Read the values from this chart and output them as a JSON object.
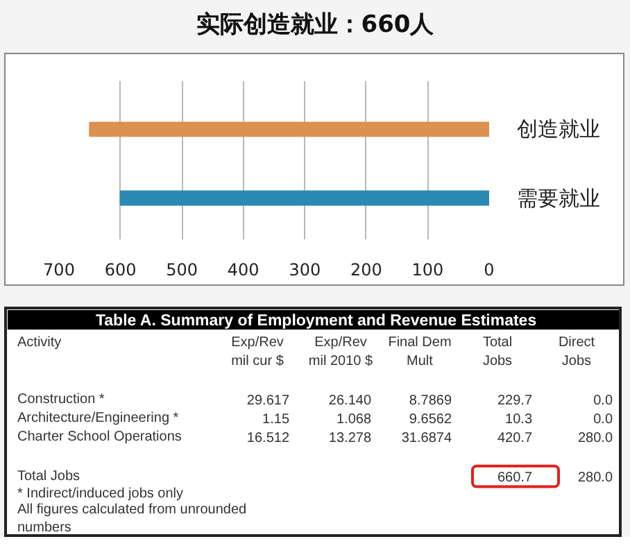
{
  "chart_data": [
    {
      "type": "bar",
      "title": "实际创造就业：660人",
      "orientation": "horizontal",
      "categories": [
        "创造就业",
        "需要就业"
      ],
      "values": [
        650,
        600
      ],
      "colors": [
        "#dc9150",
        "#2a8ab2"
      ],
      "xlim": [
        700,
        0
      ],
      "xticks": [
        700,
        600,
        500,
        400,
        300,
        200,
        100,
        0
      ],
      "grid": "x"
    },
    {
      "type": "other",
      "title": "Table A. Summary of Employment and Revenue Estimates",
      "categories": [
        "Activity",
        "Exp/Rev\nmil cur $",
        "Exp/Rev\nmil 2010 $",
        "Final Dem\nMult",
        "Total\nJobs",
        "Direct\nJobs"
      ],
      "y_categories": [
        "Construction *",
        "Architecture/Engineering *",
        "Charter School Operations",
        "Total Jobs"
      ],
      "cell_labels": [
        [
          "29.617",
          "26.140",
          "8.7869",
          "229.7",
          "0.0"
        ],
        [
          "1.15",
          "1.068",
          "9.6562",
          "10.3",
          "0.0"
        ],
        [
          "16.512",
          "13.278",
          "31.6874",
          "420.7",
          "280.0"
        ],
        [
          null,
          null,
          null,
          "660.7",
          "280.0"
        ]
      ],
      "annotations": [
        "*  Indirect/induced jobs only",
        "All figures calculated from unrounded numbers"
      ]
    }
  ]
}
